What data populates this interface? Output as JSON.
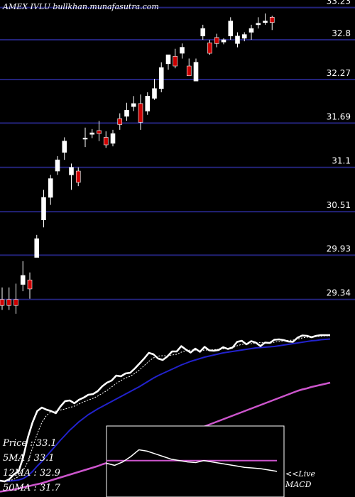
{
  "header": {
    "exchange": "AMEX",
    "symbol": "IVLU",
    "site": "bullkhan.munafasutra.com"
  },
  "stats": [
    {
      "label": "Price",
      "value": "33.1"
    },
    {
      "label": "5MA",
      "value": "33.1"
    },
    {
      "label": "12MA",
      "value": "32.9"
    },
    {
      "label": "50MA",
      "value": "31.7"
    }
  ],
  "macd_label": {
    "line1": "<<Live",
    "line2": "MACD"
  },
  "colors": {
    "up": "#ffffff",
    "down": "#cc0000",
    "grid": "#23237a",
    "price": "#ffffff",
    "ma5": "#ffffff",
    "ma12": "#2222cc",
    "ma50": "#cc55cc",
    "macd": "#ffffff",
    "signal": "#cc55cc"
  },
  "chart_data": [
    {
      "type": "candlestick",
      "title": "",
      "y_ticks": [
        33.23,
        32.8,
        32.27,
        31.69,
        31.1,
        30.51,
        29.93,
        29.34
      ],
      "ylim": [
        29.12,
        33.33
      ],
      "candles": [
        {
          "o": 29.34,
          "h": 29.5,
          "l": 29.2,
          "c": 29.26
        },
        {
          "o": 29.34,
          "h": 29.5,
          "l": 29.2,
          "c": 29.26
        },
        {
          "o": 29.34,
          "h": 29.55,
          "l": 29.15,
          "c": 29.26
        },
        {
          "o": 29.54,
          "h": 29.85,
          "l": 29.45,
          "c": 29.66
        },
        {
          "o": 29.6,
          "h": 29.7,
          "l": 29.35,
          "c": 29.48
        },
        {
          "o": 29.9,
          "h": 30.2,
          "l": 29.9,
          "c": 30.15
        },
        {
          "o": 30.4,
          "h": 30.8,
          "l": 30.3,
          "c": 30.7
        },
        {
          "o": 30.7,
          "h": 31.0,
          "l": 30.6,
          "c": 30.95
        },
        {
          "o": 31.05,
          "h": 31.25,
          "l": 31.0,
          "c": 31.2
        },
        {
          "o": 31.3,
          "h": 31.5,
          "l": 31.2,
          "c": 31.45
        },
        {
          "o": 31.0,
          "h": 31.15,
          "l": 30.8,
          "c": 31.1
        },
        {
          "o": 31.05,
          "h": 31.1,
          "l": 30.85,
          "c": 30.9
        },
        {
          "o": 31.49,
          "h": 31.63,
          "l": 31.37,
          "c": 31.49
        },
        {
          "o": 31.54,
          "h": 31.61,
          "l": 31.49,
          "c": 31.56
        },
        {
          "o": 31.59,
          "h": 31.72,
          "l": 31.45,
          "c": 31.55
        },
        {
          "o": 31.5,
          "h": 31.58,
          "l": 31.36,
          "c": 31.4
        },
        {
          "o": 31.42,
          "h": 31.6,
          "l": 31.38,
          "c": 31.55
        },
        {
          "o": 31.75,
          "h": 31.82,
          "l": 31.6,
          "c": 31.67
        },
        {
          "o": 31.78,
          "h": 31.96,
          "l": 31.72,
          "c": 31.86
        },
        {
          "o": 31.91,
          "h": 32.05,
          "l": 31.85,
          "c": 31.95
        },
        {
          "o": 31.95,
          "h": 32.07,
          "l": 31.6,
          "c": 31.7
        },
        {
          "o": 31.85,
          "h": 32.1,
          "l": 31.8,
          "c": 32.05
        },
        {
          "o": 32.02,
          "h": 32.28,
          "l": 32.0,
          "c": 32.15
        },
        {
          "o": 32.15,
          "h": 32.5,
          "l": 32.1,
          "c": 32.43
        },
        {
          "o": 32.48,
          "h": 32.6,
          "l": 32.4,
          "c": 32.6
        },
        {
          "o": 32.58,
          "h": 32.68,
          "l": 32.42,
          "c": 32.45
        },
        {
          "o": 32.62,
          "h": 32.75,
          "l": 32.55,
          "c": 32.7
        },
        {
          "o": 32.45,
          "h": 32.55,
          "l": 32.35,
          "c": 32.32
        },
        {
          "o": 32.25,
          "h": 32.55,
          "l": 32.25,
          "c": 32.5
        },
        {
          "o": 32.85,
          "h": 33.0,
          "l": 32.8,
          "c": 32.95
        },
        {
          "o": 32.76,
          "h": 32.8,
          "l": 32.6,
          "c": 32.62
        },
        {
          "o": 32.83,
          "h": 32.88,
          "l": 32.7,
          "c": 32.75
        },
        {
          "o": 32.77,
          "h": 32.82,
          "l": 32.74,
          "c": 32.8
        },
        {
          "o": 32.85,
          "h": 33.1,
          "l": 32.8,
          "c": 33.05
        },
        {
          "o": 32.75,
          "h": 32.9,
          "l": 32.7,
          "c": 32.85
        },
        {
          "o": 32.82,
          "h": 32.9,
          "l": 32.78,
          "c": 32.87
        },
        {
          "o": 32.9,
          "h": 33.0,
          "l": 32.8,
          "c": 32.95
        },
        {
          "o": 33.0,
          "h": 33.1,
          "l": 32.95,
          "c": 33.02
        },
        {
          "o": 33.03,
          "h": 33.15,
          "l": 33.0,
          "c": 33.05
        },
        {
          "o": 33.1,
          "h": 33.12,
          "l": 32.93,
          "c": 33.03
        }
      ]
    },
    {
      "type": "line",
      "title": "",
      "ylim": [
        28.6,
        33.4
      ],
      "series": [
        {
          "key": "price",
          "values": [
            29.06,
            29.04,
            29.1,
            29.24,
            29.32,
            29.72,
            30.28,
            30.7,
            31.02,
            31.12,
            31.06,
            31.02,
            30.96,
            31.15,
            31.3,
            31.32,
            31.24,
            31.34,
            31.4,
            31.48,
            31.5,
            31.58,
            31.72,
            31.82,
            31.88,
            32.02,
            32.0,
            32.08,
            32.1,
            32.22,
            32.36,
            32.5,
            32.66,
            32.62,
            32.5,
            32.46,
            32.56,
            32.7,
            32.7,
            32.85,
            32.75,
            32.67,
            32.78,
            32.69,
            32.83,
            32.73,
            32.72,
            32.74,
            32.82,
            32.77,
            32.81,
            32.97,
            33.0,
            32.9,
            32.99,
            32.95,
            32.85,
            32.95,
            32.94,
            33.03,
            33.04,
            33.02,
            32.98,
            32.97,
            33.09,
            33.15,
            33.14,
            33.1,
            33.14,
            33.16,
            33.16,
            33.16
          ]
        },
        {
          "key": "ma5",
          "values": [
            29.05,
            29.05,
            29.06,
            29.1,
            29.18,
            29.35,
            29.6,
            29.98,
            30.38,
            30.7,
            30.9,
            31.0,
            31.02,
            31.05,
            31.08,
            31.12,
            31.16,
            31.22,
            31.28,
            31.33,
            31.38,
            31.44,
            31.52,
            31.6,
            31.7,
            31.8,
            31.88,
            31.95,
            32.0,
            32.08,
            32.18,
            32.3,
            32.42,
            32.52,
            32.57,
            32.58,
            32.58,
            32.6,
            32.62,
            32.68,
            32.72,
            32.74,
            32.74,
            32.72,
            32.74,
            32.74,
            32.75,
            32.76,
            32.78,
            32.79,
            32.8,
            32.86,
            32.9,
            32.91,
            32.92,
            32.94,
            32.95,
            32.94,
            32.93,
            32.96,
            32.98,
            33.0,
            33.01,
            33.02,
            33.05,
            33.08,
            33.1,
            33.11,
            33.12,
            33.13,
            33.14,
            33.14
          ]
        },
        {
          "key": "ma12",
          "values": [
            29.05,
            29.05,
            29.05,
            29.06,
            29.08,
            29.12,
            29.2,
            29.32,
            29.47,
            29.6,
            29.75,
            29.9,
            30.05,
            30.2,
            30.34,
            30.48,
            30.6,
            30.72,
            30.82,
            30.92,
            31.0,
            31.08,
            31.15,
            31.22,
            31.29,
            31.36,
            31.43,
            31.5,
            31.57,
            31.64,
            31.71,
            31.79,
            31.87,
            31.95,
            32.02,
            32.08,
            32.14,
            32.2,
            32.26,
            32.32,
            32.37,
            32.42,
            32.46,
            32.5,
            32.54,
            32.57,
            32.6,
            32.63,
            32.66,
            32.68,
            32.7,
            32.72,
            32.74,
            32.76,
            32.78,
            32.8,
            32.81,
            32.82,
            32.83,
            32.84,
            32.86,
            32.88,
            32.9,
            32.92,
            32.94,
            32.96,
            32.98,
            33.0,
            33.01,
            33.03,
            33.04,
            33.05
          ]
        },
        {
          "key": "ma50",
          "values": [
            28.75,
            28.77,
            28.79,
            28.81,
            28.84,
            28.87,
            28.9,
            28.93,
            28.96,
            28.99,
            29.03,
            29.07,
            29.11,
            29.15,
            29.19,
            29.23,
            29.27,
            29.31,
            29.35,
            29.39,
            29.43,
            29.47,
            29.52,
            29.56,
            29.6,
            29.65,
            29.7,
            29.74,
            29.79,
            29.84,
            29.89,
            29.94,
            29.99,
            30.04,
            30.09,
            30.14,
            30.19,
            30.24,
            30.29,
            30.34,
            30.39,
            30.44,
            30.49,
            30.54,
            30.59,
            30.64,
            30.69,
            30.74,
            30.79,
            30.84,
            30.89,
            30.94,
            30.99,
            31.04,
            31.09,
            31.14,
            31.19,
            31.24,
            31.29,
            31.34,
            31.39,
            31.44,
            31.49,
            31.54,
            31.59,
            31.63,
            31.66,
            31.7,
            31.73,
            31.76,
            31.79,
            31.82
          ]
        }
      ]
    },
    {
      "type": "line",
      "title": "",
      "ylim": [
        -0.5,
        0.5
      ],
      "series": [
        {
          "key": "macd",
          "values": [
            0.0,
            -0.03,
            0.02,
            0.1,
            0.2,
            0.18,
            0.14,
            0.1,
            0.06,
            0.04,
            0.02,
            0.01,
            0.04,
            0.02,
            0.0,
            -0.02,
            -0.04,
            -0.06,
            -0.07,
            -0.08,
            -0.1,
            -0.12
          ]
        },
        {
          "key": "signal",
          "values": [
            0.04,
            0.04,
            0.04,
            0.04,
            0.04,
            0.04,
            0.04,
            0.04,
            0.04,
            0.04,
            0.04,
            0.04,
            0.04,
            0.04,
            0.04,
            0.04,
            0.04,
            0.04,
            0.04,
            0.04,
            0.04,
            0.04
          ]
        }
      ]
    }
  ]
}
